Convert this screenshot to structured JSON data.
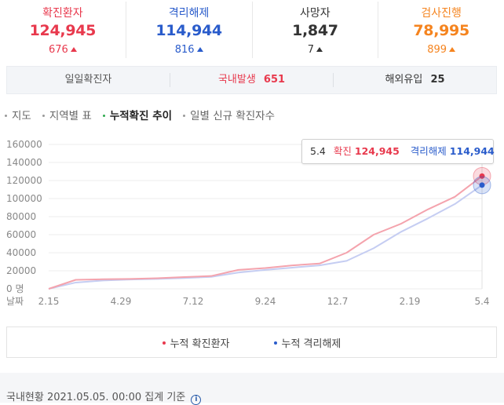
{
  "colors": {
    "confirmed": "#e8394d",
    "released": "#2a5ccb",
    "death": "#333333",
    "testing": "#f5841f",
    "confirmed_line": "#f4a3ad",
    "released_line": "#c5cdf2"
  },
  "stats": [
    {
      "label": "확진환자",
      "value": "124,945",
      "delta": "676",
      "color": "#e8394d"
    },
    {
      "label": "격리해제",
      "value": "114,944",
      "delta": "816",
      "color": "#2a5ccb"
    },
    {
      "label": "사망자",
      "value": "1,847",
      "delta": "7",
      "color": "#333333"
    },
    {
      "label": "검사진행",
      "value": "78,995",
      "delta": "899",
      "color": "#f5841f"
    }
  ],
  "daily": {
    "label": "일일확진자",
    "domestic_label": "국내발생",
    "domestic_value": "651",
    "overseas_label": "해외유입",
    "overseas_value": "25"
  },
  "tabs": [
    {
      "label": "지도",
      "active": false
    },
    {
      "label": "지역별 표",
      "active": false
    },
    {
      "label": "누적확진 추이",
      "active": true
    },
    {
      "label": "일별 신규 확진자수",
      "active": false
    }
  ],
  "tooltip": {
    "date": "5.4",
    "confirmed_label": "확진",
    "confirmed_value": "124,945",
    "released_label": "격리해제",
    "released_value": "114,944"
  },
  "chart_data": {
    "type": "line",
    "y_ticks": [
      "160000",
      "140000",
      "120000",
      "100000",
      "80000",
      "60000",
      "40000",
      "20000",
      "0 명"
    ],
    "x_axis_label": "날짜",
    "x_ticks": [
      "2.15",
      "4.29",
      "7.12",
      "9.24",
      "12.7",
      "2.19",
      "5.4"
    ],
    "ylim": [
      0,
      160000
    ],
    "series": [
      {
        "name": "누적 확진환자",
        "color": "#f4a3ad",
        "values": [
          0,
          10000,
          10600,
          11000,
          11700,
          13000,
          14200,
          21000,
          23000,
          26000,
          28000,
          40000,
          60000,
          72000,
          88000,
          102000,
          124945
        ]
      },
      {
        "name": "누적 격리해제",
        "color": "#c5cdf2",
        "values": [
          0,
          7000,
          9200,
          10300,
          11000,
          12000,
          13300,
          18000,
          21000,
          23500,
          26000,
          31000,
          45000,
          63000,
          78000,
          94000,
          114944
        ]
      }
    ],
    "x_positions": [
      0,
      0.0625,
      0.125,
      0.1875,
      0.25,
      0.3125,
      0.375,
      0.4375,
      0.5,
      0.5625,
      0.625,
      0.6875,
      0.75,
      0.8125,
      0.875,
      0.9375,
      1
    ]
  },
  "legend": [
    {
      "label": "누적 확진환자",
      "color": "#e8394d"
    },
    {
      "label": "누적 격리해제",
      "color": "#2a5ccb"
    }
  ],
  "footer": {
    "text": "국내현황 2021.05.05. 00:00 집계 기준",
    "icon": "info-icon"
  }
}
